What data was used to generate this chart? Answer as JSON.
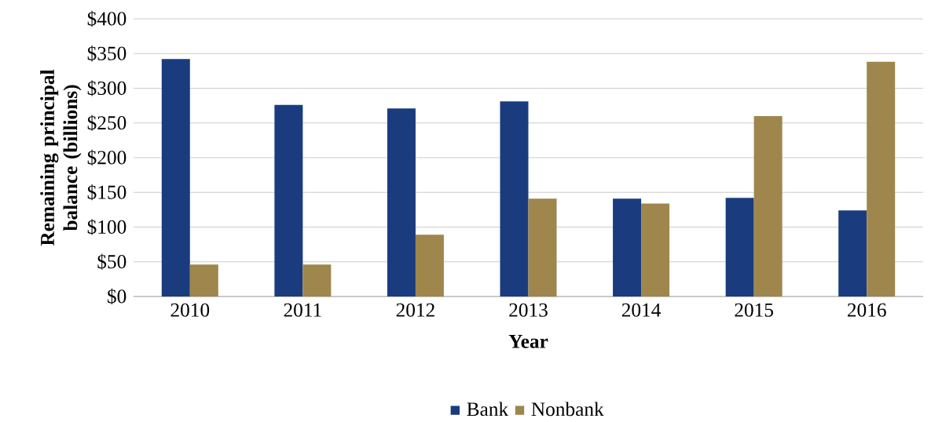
{
  "chart_data": {
    "type": "bar",
    "xlabel": "Year",
    "ylabel": "Remaining principal balance (billions)",
    "categories": [
      "2010",
      "2011",
      "2012",
      "2013",
      "2014",
      "2015",
      "2016"
    ],
    "series": [
      {
        "name": "Bank",
        "color": "#1a3c7f",
        "values": [
          342,
          276,
          271,
          281,
          141,
          142,
          124
        ]
      },
      {
        "name": "Nonbank",
        "color": "#9e864c",
        "values": [
          46,
          46,
          89,
          141,
          134,
          260,
          338
        ]
      }
    ],
    "ylim": [
      0,
      400
    ],
    "yticks": [
      {
        "value": 0,
        "label": "$0"
      },
      {
        "value": 50,
        "label": "$50"
      },
      {
        "value": 100,
        "label": "$100"
      },
      {
        "value": 150,
        "label": "$150"
      },
      {
        "value": 200,
        "label": "$200"
      },
      {
        "value": 250,
        "label": "$250"
      },
      {
        "value": 300,
        "label": "$300"
      },
      {
        "value": 350,
        "label": "$350"
      },
      {
        "value": 400,
        "label": "$400"
      }
    ],
    "grid": "y",
    "legend": "bottom"
  }
}
